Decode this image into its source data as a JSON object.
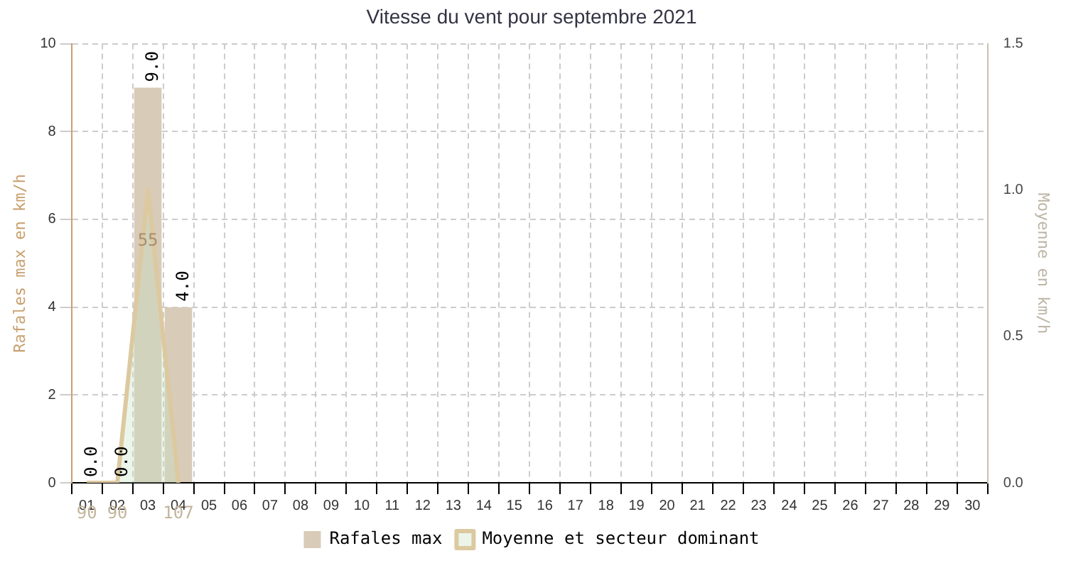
{
  "chart_data": {
    "type": "bar",
    "title": "Vitesse du vent pour septembre 2021",
    "ylabel": "Rafales max en km/h",
    "y2label": "Moyenne en km/h",
    "categories": [
      "01",
      "02",
      "03",
      "04",
      "05",
      "06",
      "07",
      "08",
      "09",
      "10",
      "11",
      "12",
      "13",
      "14",
      "15",
      "16",
      "17",
      "18",
      "19",
      "20",
      "21",
      "22",
      "23",
      "24",
      "25",
      "26",
      "27",
      "28",
      "29",
      "30"
    ],
    "series": [
      {
        "name": "Rafales max",
        "color": "#d8cbb8",
        "values": [
          0,
          0,
          9,
          4,
          null,
          null,
          null,
          null,
          null,
          null,
          null,
          null,
          null,
          null,
          null,
          null,
          null,
          null,
          null,
          null,
          null,
          null,
          null,
          null,
          null,
          null,
          null,
          null,
          null,
          null
        ],
        "value_labels": [
          "0.0",
          "0.0",
          "9.0",
          "4.0",
          null,
          null,
          null,
          null,
          null,
          null,
          null,
          null,
          null,
          null,
          null,
          null,
          null,
          null,
          null,
          null,
          null,
          null,
          null,
          null,
          null,
          null,
          null,
          null,
          null,
          null
        ]
      },
      {
        "name": "Moyenne et secteur dominant",
        "type": "area",
        "axis": "y2",
        "color": "#dcc9a0",
        "values": [
          0,
          0,
          1.0,
          0,
          null,
          null,
          null,
          null,
          null,
          null,
          null,
          null,
          null,
          null,
          null,
          null,
          null,
          null,
          null,
          null,
          null,
          null,
          null,
          null,
          null,
          null,
          null,
          null,
          null,
          null
        ]
      }
    ],
    "annotations": [
      "90",
      "90",
      "55",
      "107"
    ],
    "ylim": [
      0,
      10
    ],
    "yticks": [
      0,
      2,
      4,
      6,
      8,
      10
    ],
    "y2lim": [
      0,
      1.5
    ],
    "y2ticks": [
      {
        "value": 0,
        "label": "0.0"
      },
      {
        "value": 0.5,
        "label": "0.5"
      },
      {
        "value": 1,
        "label": "1.0"
      },
      {
        "value": 1.5,
        "label": "1.5"
      }
    ],
    "grid": true,
    "legend": "bottom"
  }
}
